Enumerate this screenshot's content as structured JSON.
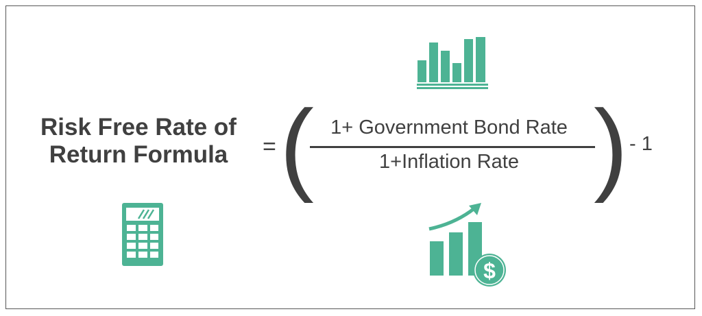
{
  "formula": {
    "title_line1": "Risk Free Rate of",
    "title_line2": "Return Formula",
    "equals": "=",
    "open_paren": "(",
    "close_paren": ")",
    "numerator": "1+ Government Bond Rate",
    "denominator": "1+Inflation Rate",
    "trailing": "- 1"
  },
  "icons": {
    "top": "bar-chart-icon",
    "bottom_left": "calculator-icon",
    "bottom_right": "growth-chart-dollar-icon"
  },
  "colors": {
    "accent": "#4db394",
    "text": "#404040",
    "border": "#555555"
  }
}
